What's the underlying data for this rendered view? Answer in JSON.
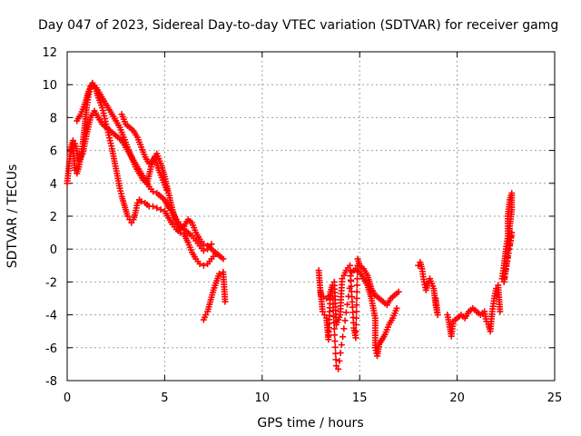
{
  "chart_data": {
    "type": "scatter",
    "title": "Day 047 of 2023, Sidereal Day-to-day VTEC variation (SDTVAR) for receiver gamg",
    "xlabel": "GPS time / hours",
    "ylabel": "SDTVAR / TECUs",
    "xlim": [
      0,
      25
    ],
    "ylim": [
      -8,
      12
    ],
    "xticks": [
      0,
      5,
      10,
      15,
      20,
      25
    ],
    "yticks": [
      -8,
      -6,
      -4,
      -2,
      0,
      2,
      4,
      6,
      8,
      10,
      12
    ],
    "grid": true,
    "marker": "+",
    "color": "#ff0000",
    "series": [
      {
        "name": "SDTVAR",
        "traces": [
          [
            [
              0.0,
              4.0
            ],
            [
              0.1,
              5.2
            ],
            [
              0.2,
              6.2
            ],
            [
              0.3,
              6.6
            ],
            [
              0.35,
              5.5
            ],
            [
              0.4,
              4.8
            ],
            [
              0.5,
              4.6
            ],
            [
              0.6,
              5.0
            ],
            [
              0.7,
              5.6
            ],
            [
              0.8,
              6.4
            ],
            [
              0.9,
              7.5
            ],
            [
              1.0,
              8.6
            ],
            [
              1.1,
              9.4
            ],
            [
              1.2,
              9.9
            ],
            [
              1.3,
              10.0
            ],
            [
              1.4,
              9.9
            ],
            [
              1.5,
              9.6
            ],
            [
              1.6,
              9.2
            ],
            [
              1.7,
              8.9
            ],
            [
              1.8,
              8.6
            ],
            [
              1.9,
              8.1
            ],
            [
              2.0,
              7.6
            ],
            [
              2.1,
              7.1
            ],
            [
              2.2,
              6.6
            ],
            [
              2.3,
              6.1
            ],
            [
              2.4,
              5.5
            ],
            [
              2.5,
              4.9
            ],
            [
              2.6,
              4.3
            ],
            [
              2.7,
              3.7
            ],
            [
              2.8,
              3.2
            ],
            [
              2.9,
              2.8
            ],
            [
              3.0,
              2.4
            ],
            [
              3.1,
              2.0
            ],
            [
              3.2,
              1.8
            ],
            [
              3.3,
              1.6
            ],
            [
              3.4,
              1.8
            ],
            [
              3.5,
              2.2
            ],
            [
              3.6,
              2.8
            ],
            [
              3.7,
              3.0
            ],
            [
              3.8,
              2.9
            ],
            [
              4.0,
              2.8
            ],
            [
              4.2,
              2.6
            ],
            [
              4.4,
              2.6
            ],
            [
              4.6,
              2.5
            ],
            [
              4.8,
              2.4
            ],
            [
              5.0,
              2.3
            ],
            [
              5.2,
              1.9
            ],
            [
              5.4,
              1.5
            ],
            [
              5.6,
              1.2
            ],
            [
              5.8,
              1.0
            ],
            [
              6.0,
              0.9
            ],
            [
              6.2,
              0.4
            ],
            [
              6.4,
              -0.2
            ],
            [
              6.6,
              -0.6
            ],
            [
              6.8,
              -0.9
            ],
            [
              7.0,
              -1.0
            ],
            [
              7.2,
              -0.9
            ],
            [
              7.4,
              -0.6
            ],
            [
              7.6,
              -0.3
            ]
          ],
          [
            [
              0.2,
              6.0
            ],
            [
              0.4,
              6.4
            ],
            [
              0.6,
              5.4
            ],
            [
              0.8,
              5.8
            ],
            [
              1.0,
              7.0
            ],
            [
              1.2,
              8.0
            ],
            [
              1.4,
              8.4
            ],
            [
              1.6,
              8.0
            ],
            [
              1.8,
              7.6
            ],
            [
              2.0,
              7.4
            ],
            [
              2.2,
              7.2
            ],
            [
              2.4,
              7.0
            ],
            [
              2.6,
              6.8
            ],
            [
              2.8,
              6.6
            ],
            [
              3.0,
              6.2
            ],
            [
              3.2,
              5.8
            ],
            [
              3.4,
              5.4
            ],
            [
              3.6,
              5.0
            ],
            [
              3.8,
              4.6
            ],
            [
              4.0,
              4.2
            ],
            [
              4.2,
              3.8
            ],
            [
              4.4,
              3.5
            ],
            [
              4.6,
              3.4
            ],
            [
              4.8,
              3.2
            ],
            [
              5.0,
              3.0
            ],
            [
              5.2,
              2.5
            ],
            [
              5.4,
              2.2
            ],
            [
              5.6,
              1.8
            ],
            [
              5.8,
              1.5
            ],
            [
              6.0,
              1.2
            ],
            [
              6.2,
              1.0
            ],
            [
              6.4,
              0.8
            ],
            [
              6.6,
              0.5
            ],
            [
              6.8,
              0.2
            ],
            [
              7.0,
              -0.1
            ],
            [
              7.2,
              0.0
            ],
            [
              7.4,
              0.3
            ]
          ],
          [
            [
              0.5,
              7.8
            ],
            [
              0.7,
              8.2
            ],
            [
              0.9,
              8.8
            ],
            [
              1.1,
              9.6
            ],
            [
              1.3,
              10.1
            ],
            [
              1.5,
              9.8
            ],
            [
              1.7,
              9.4
            ],
            [
              1.9,
              9.0
            ],
            [
              2.1,
              8.6
            ],
            [
              2.3,
              8.2
            ],
            [
              2.5,
              7.8
            ],
            [
              2.7,
              7.4
            ],
            [
              2.9,
              6.8
            ],
            [
              3.1,
              6.2
            ],
            [
              3.3,
              5.6
            ],
            [
              3.5,
              5.0
            ],
            [
              3.7,
              4.6
            ],
            [
              3.9,
              4.2
            ],
            [
              4.1,
              4.0
            ],
            [
              4.3,
              5.0
            ],
            [
              4.5,
              5.6
            ],
            [
              4.7,
              4.8
            ],
            [
              4.9,
              4.2
            ],
            [
              5.1,
              3.6
            ]
          ],
          [
            [
              2.8,
              8.2
            ],
            [
              3.0,
              7.6
            ],
            [
              3.2,
              7.4
            ],
            [
              3.4,
              7.2
            ],
            [
              3.6,
              6.8
            ],
            [
              3.8,
              6.2
            ],
            [
              4.0,
              5.6
            ],
            [
              4.2,
              5.2
            ],
            [
              4.4,
              5.4
            ],
            [
              4.6,
              5.8
            ],
            [
              4.8,
              5.2
            ],
            [
              5.0,
              4.4
            ],
            [
              5.2,
              3.4
            ],
            [
              5.4,
              2.4
            ],
            [
              5.6,
              1.6
            ],
            [
              5.8,
              1.2
            ],
            [
              6.0,
              1.4
            ],
            [
              6.2,
              1.8
            ],
            [
              6.4,
              1.6
            ],
            [
              6.6,
              1.0
            ],
            [
              6.8,
              0.6
            ],
            [
              7.0,
              0.3
            ],
            [
              7.2,
              0.2
            ],
            [
              7.4,
              0.0
            ],
            [
              7.6,
              -0.2
            ],
            [
              7.8,
              -0.4
            ],
            [
              8.0,
              -0.6
            ]
          ],
          [
            [
              7.0,
              -4.3
            ],
            [
              7.1,
              -4.0
            ],
            [
              7.2,
              -3.8
            ],
            [
              7.5,
              -2.5
            ],
            [
              7.8,
              -1.5
            ],
            [
              8.0,
              -1.4
            ],
            [
              8.1,
              -3.2
            ]
          ],
          [
            [
              13.0,
              -2.6
            ],
            [
              13.1,
              -3.8
            ],
            [
              13.2,
              -4.0
            ],
            [
              13.3,
              -4.2
            ],
            [
              13.4,
              -5.5
            ],
            [
              13.5,
              -2.6
            ],
            [
              13.6,
              -2.2
            ],
            [
              13.7,
              -2.0
            ],
            [
              13.8,
              -4.6
            ],
            [
              13.9,
              -4.3
            ],
            [
              14.0,
              -4.0
            ],
            [
              14.1,
              -1.8
            ],
            [
              14.2,
              -1.6
            ],
            [
              14.3,
              -1.3
            ],
            [
              14.5,
              -1.0
            ],
            [
              14.7,
              -4.8
            ],
            [
              14.8,
              -5.4
            ],
            [
              14.9,
              -0.6
            ],
            [
              15.0,
              -1.0
            ],
            [
              15.2,
              -1.2
            ],
            [
              15.4,
              -1.6
            ],
            [
              15.6,
              -2.4
            ],
            [
              15.8,
              -2.8
            ],
            [
              16.0,
              -3.0
            ],
            [
              16.2,
              -3.2
            ],
            [
              16.4,
              -3.4
            ],
            [
              16.6,
              -3.0
            ],
            [
              16.8,
              -2.8
            ],
            [
              17.0,
              -2.6
            ]
          ],
          [
            [
              12.9,
              -1.3
            ],
            [
              13.0,
              -2.8
            ],
            [
              13.3,
              -3.0
            ],
            [
              13.6,
              -2.6
            ],
            [
              13.8,
              -7.1
            ],
            [
              13.9,
              -7.3
            ],
            [
              14.6,
              -1.4
            ],
            [
              14.8,
              -1.2
            ],
            [
              15.0,
              -1.4
            ],
            [
              15.2,
              -1.8
            ],
            [
              15.4,
              -2.2
            ],
            [
              15.6,
              -3.0
            ],
            [
              15.8,
              -4.2
            ],
            [
              15.8,
              -6.0
            ],
            [
              15.9,
              -6.5
            ],
            [
              16.0,
              -5.8
            ],
            [
              16.3,
              -5.2
            ],
            [
              16.5,
              -4.6
            ],
            [
              16.7,
              -4.2
            ],
            [
              16.9,
              -3.6
            ]
          ],
          [
            [
              18.0,
              -1.0
            ],
            [
              18.1,
              -0.8
            ],
            [
              18.2,
              -1.2
            ],
            [
              18.3,
              -2.0
            ],
            [
              18.4,
              -2.5
            ],
            [
              18.6,
              -1.8
            ],
            [
              18.8,
              -2.4
            ],
            [
              18.9,
              -3.4
            ],
            [
              19.0,
              -4.0
            ],
            [
              18.9,
              -3.0
            ]
          ],
          [
            [
              19.5,
              -4.0
            ],
            [
              19.6,
              -4.6
            ],
            [
              19.7,
              -5.3
            ],
            [
              19.8,
              -4.4
            ],
            [
              20.0,
              -4.2
            ],
            [
              20.2,
              -4.0
            ],
            [
              20.4,
              -4.2
            ],
            [
              20.6,
              -3.8
            ],
            [
              20.8,
              -3.6
            ],
            [
              21.0,
              -3.8
            ],
            [
              21.2,
              -4.0
            ],
            [
              21.4,
              -3.8
            ],
            [
              21.5,
              -4.4
            ],
            [
              21.6,
              -4.6
            ],
            [
              21.7,
              -5.0
            ],
            [
              21.8,
              -3.8
            ],
            [
              21.9,
              -3.0
            ],
            [
              22.0,
              -2.4
            ],
            [
              22.1,
              -2.2
            ],
            [
              22.2,
              -3.8
            ]
          ],
          [
            [
              22.3,
              -1.8
            ],
            [
              22.4,
              -1.0
            ],
            [
              22.5,
              0.0
            ],
            [
              22.6,
              0.8
            ],
            [
              22.6,
              2.0
            ],
            [
              22.7,
              3.0
            ],
            [
              22.8,
              3.4
            ],
            [
              22.8,
              2.4
            ],
            [
              22.7,
              1.4
            ],
            [
              22.6,
              -0.4
            ],
            [
              22.5,
              -1.2
            ],
            [
              22.4,
              -2.0
            ],
            [
              22.8,
              1.0
            ],
            [
              22.7,
              0.2
            ]
          ]
        ]
      }
    ]
  }
}
